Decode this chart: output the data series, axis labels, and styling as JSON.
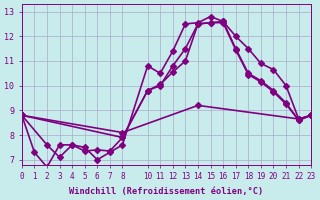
{
  "xlabel": "Windchill (Refroidissement éolien,°C)",
  "ylabel": "",
  "bg_color": "#c8ecec",
  "line_color": "#800080",
  "grid_color": "#aaaacc",
  "xlim": [
    0,
    23
  ],
  "ylim": [
    6.8,
    13.3
  ],
  "xticks": [
    0,
    1,
    2,
    3,
    4,
    5,
    6,
    7,
    8,
    10,
    11,
    12,
    13,
    14,
    15,
    16,
    17,
    18,
    19,
    20,
    21,
    22,
    23
  ],
  "yticks": [
    7,
    8,
    9,
    10,
    11,
    12,
    13
  ],
  "line1_x": [
    0,
    1,
    2,
    3,
    4,
    5,
    6,
    7,
    8,
    10,
    11,
    12,
    13,
    14,
    15,
    16,
    17,
    18,
    19,
    20,
    21,
    22,
    23
  ],
  "line1_y": [
    8.8,
    7.3,
    6.7,
    7.6,
    7.6,
    7.5,
    7.0,
    7.3,
    7.6,
    10.8,
    10.5,
    11.4,
    12.5,
    12.55,
    12.8,
    12.6,
    12.0,
    11.5,
    10.9,
    10.65,
    10.0,
    8.65,
    8.8
  ],
  "line2_x": [
    0,
    2,
    3,
    4,
    5,
    6,
    7,
    8,
    10,
    11,
    12,
    13,
    14,
    15,
    16,
    17,
    18,
    19,
    20,
    21,
    22,
    23
  ],
  "line2_y": [
    8.8,
    7.6,
    7.1,
    7.6,
    7.35,
    7.4,
    7.35,
    7.9,
    9.8,
    10.0,
    10.8,
    11.5,
    12.5,
    12.55,
    12.6,
    11.5,
    10.5,
    10.2,
    9.8,
    9.3,
    8.6,
    8.8
  ],
  "line3_x": [
    0,
    8,
    10,
    11,
    12,
    13,
    14,
    15,
    16,
    17,
    18,
    19,
    20,
    21,
    22,
    23
  ],
  "line3_y": [
    8.8,
    7.9,
    9.8,
    10.05,
    10.55,
    11.0,
    12.5,
    12.55,
    12.55,
    11.45,
    10.45,
    10.15,
    9.75,
    9.25,
    8.6,
    8.8
  ],
  "line4_x": [
    0,
    8,
    14,
    22,
    23
  ],
  "line4_y": [
    8.8,
    8.1,
    9.2,
    8.65,
    8.8
  ],
  "marker": "D",
  "markersize": 3,
  "linewidth": 1.2
}
